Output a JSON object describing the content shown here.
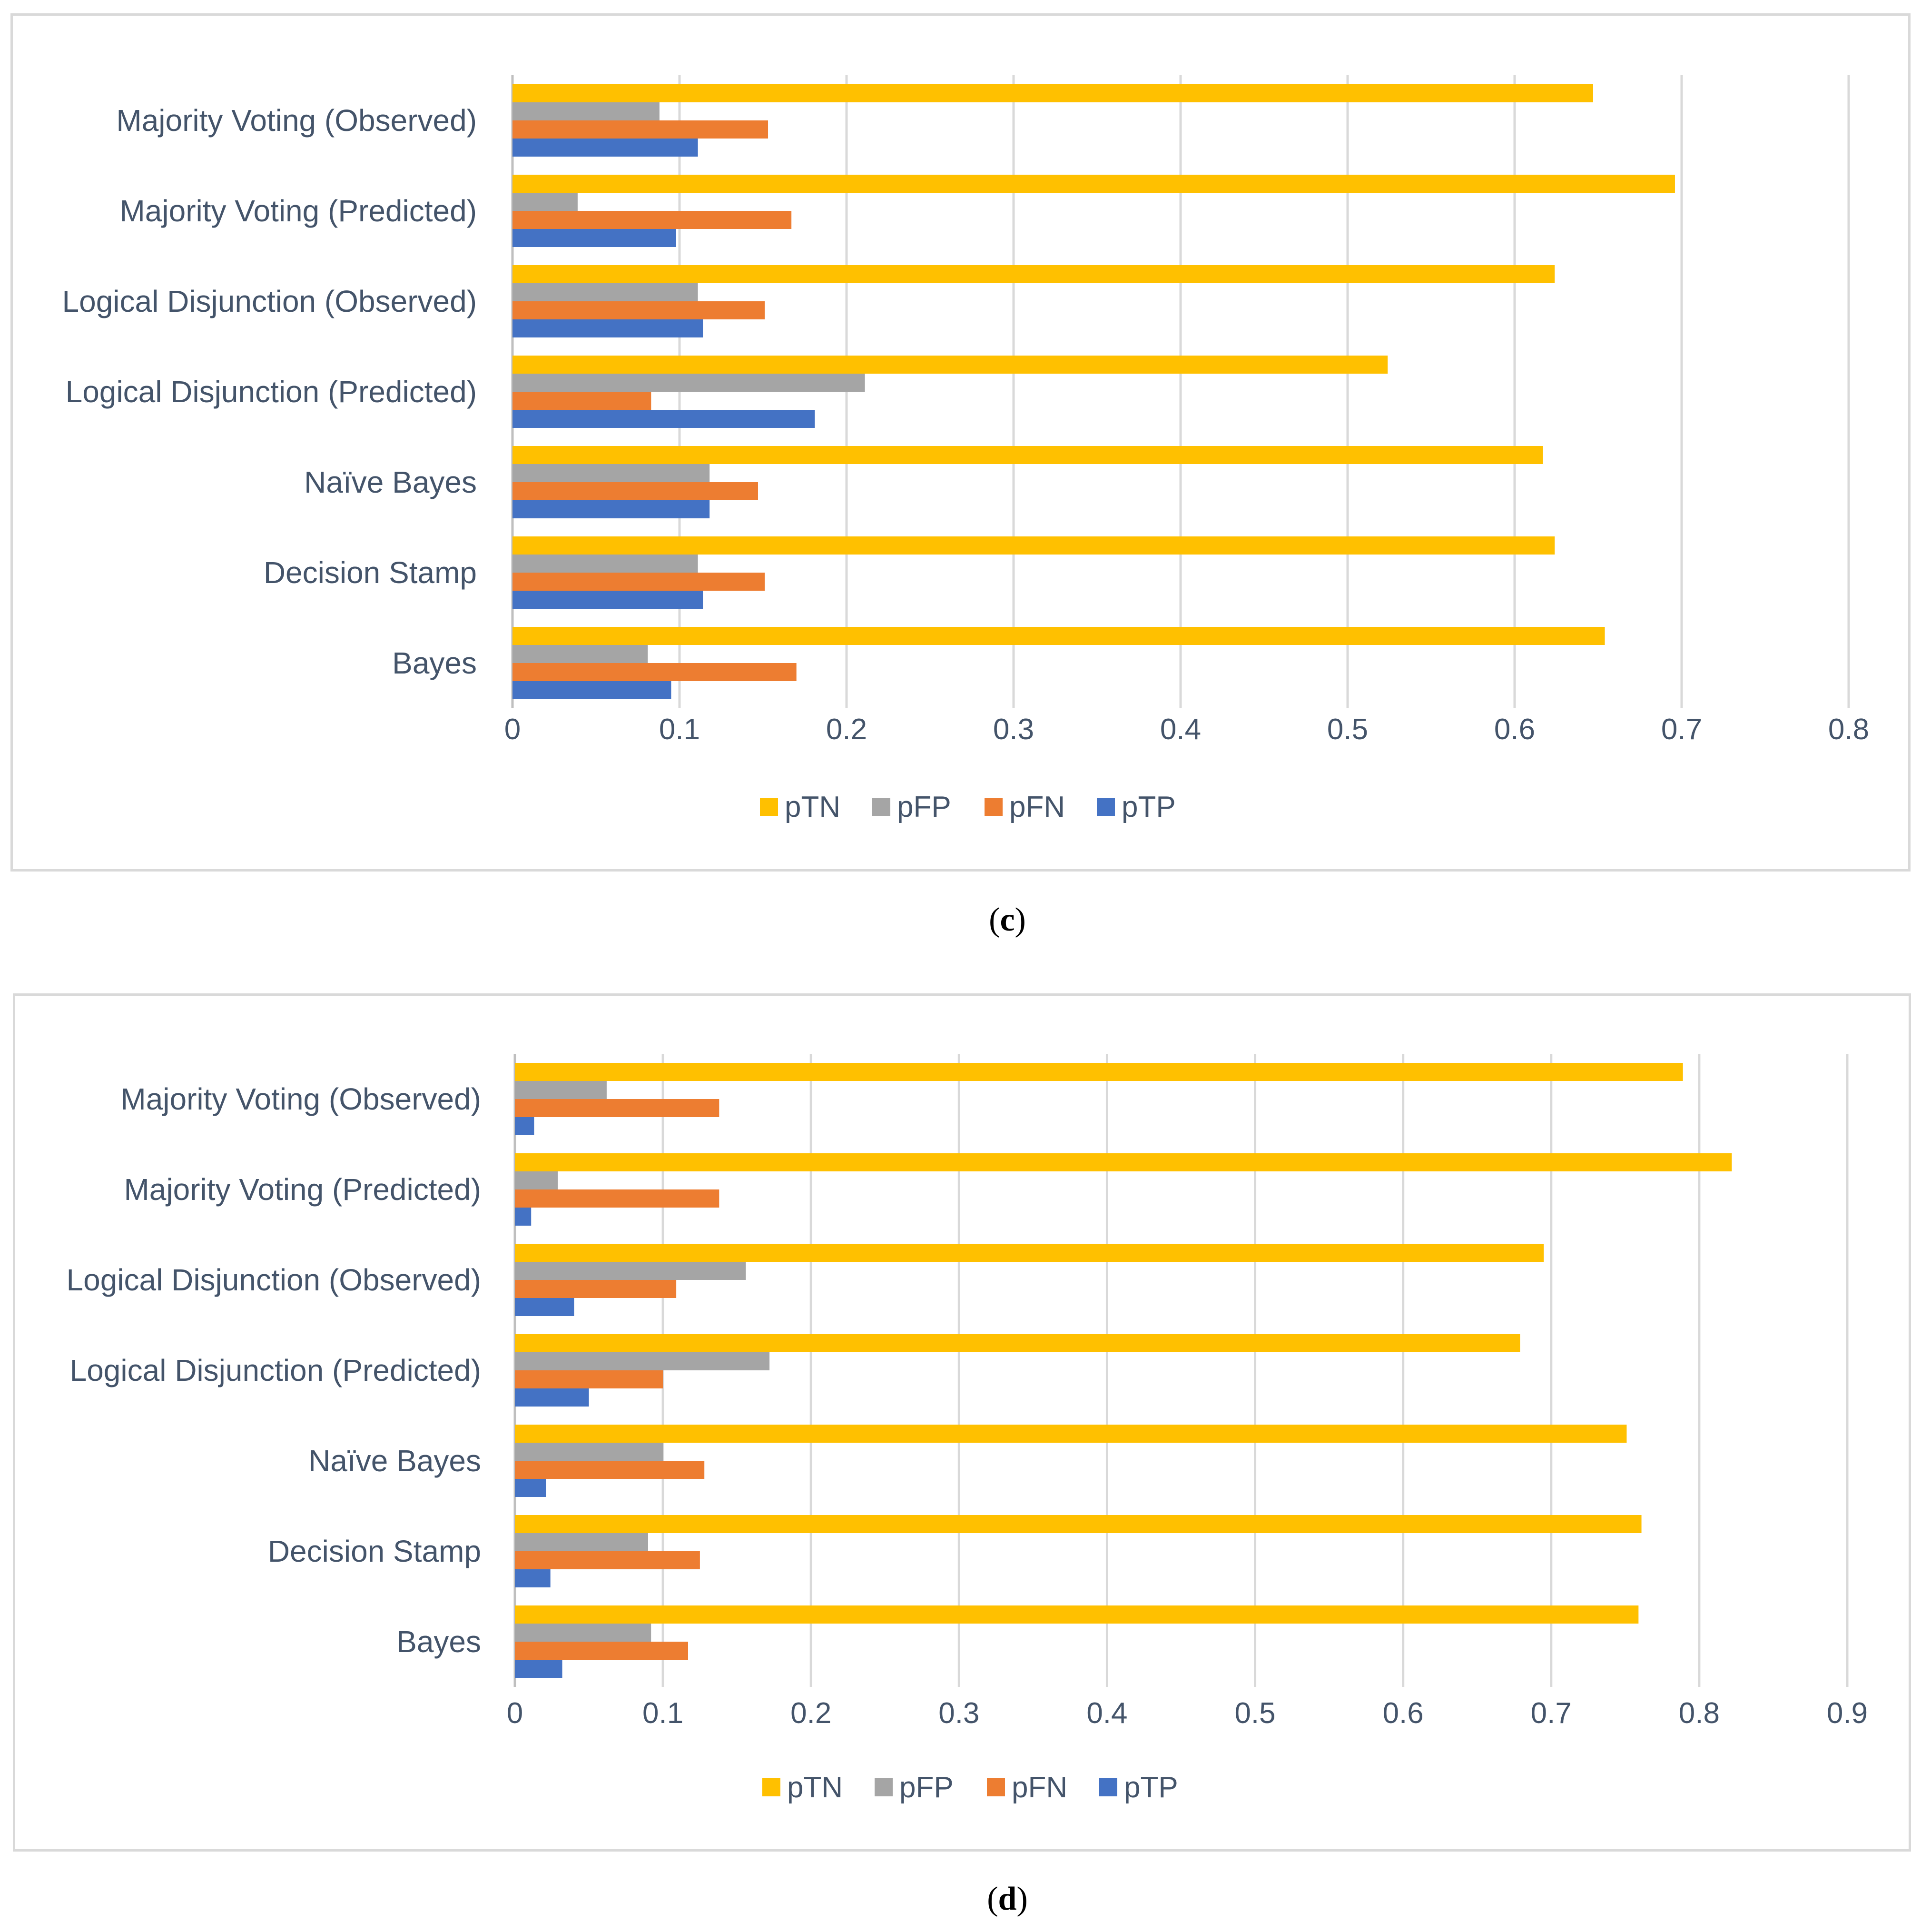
{
  "figure": {
    "panels": [
      {
        "caption": "c"
      },
      {
        "caption": "d"
      }
    ]
  },
  "chart_data": [
    {
      "type": "bar",
      "orientation": "horizontal",
      "panel": "c",
      "categories": [
        "Majority Voting (Observed)",
        "Majority Voting (Predicted)",
        "Logical Disjunction (Observed)",
        "Logical Disjunction (Predicted)",
        "Naïve Bayes",
        "Decision Stamp",
        "Bayes"
      ],
      "series": [
        {
          "name": "pTN",
          "color": "#ffc000",
          "values": [
            0.647,
            0.696,
            0.624,
            0.524,
            0.617,
            0.624,
            0.654
          ]
        },
        {
          "name": "pFP",
          "color": "#a5a5a5",
          "values": [
            0.088,
            0.039,
            0.111,
            0.211,
            0.118,
            0.111,
            0.081
          ]
        },
        {
          "name": "pFN",
          "color": "#ed7d31",
          "values": [
            0.153,
            0.167,
            0.151,
            0.083,
            0.147,
            0.151,
            0.17
          ]
        },
        {
          "name": "pTP",
          "color": "#4472c4",
          "values": [
            0.111,
            0.098,
            0.114,
            0.181,
            0.118,
            0.114,
            0.095
          ]
        }
      ],
      "xlim": [
        0,
        0.8
      ],
      "xticks": [
        "0",
        "0.1",
        "0.2",
        "0.3",
        "0.4",
        "0.5",
        "0.6",
        "0.7",
        "0.8"
      ],
      "legend": [
        "pTN",
        "pFP",
        "pFN",
        "pTP"
      ],
      "legend_position": "bottom",
      "grid": true,
      "title": "",
      "xlabel": "",
      "ylabel": ""
    },
    {
      "type": "bar",
      "orientation": "horizontal",
      "panel": "d",
      "categories": [
        "Majority Voting (Observed)",
        "Majority Voting (Predicted)",
        "Logical Disjunction (Observed)",
        "Logical Disjunction (Predicted)",
        "Naïve Bayes",
        "Decision Stamp",
        "Bayes"
      ],
      "series": [
        {
          "name": "pTN",
          "color": "#ffc000",
          "values": [
            0.789,
            0.822,
            0.695,
            0.679,
            0.751,
            0.761,
            0.759
          ]
        },
        {
          "name": "pFP",
          "color": "#a5a5a5",
          "values": [
            0.062,
            0.029,
            0.156,
            0.172,
            0.1,
            0.09,
            0.092
          ]
        },
        {
          "name": "pFN",
          "color": "#ed7d31",
          "values": [
            0.138,
            0.138,
            0.109,
            0.1,
            0.128,
            0.125,
            0.117
          ]
        },
        {
          "name": "pTP",
          "color": "#4472c4",
          "values": [
            0.013,
            0.011,
            0.04,
            0.05,
            0.021,
            0.024,
            0.032
          ]
        }
      ],
      "xlim": [
        0,
        0.9
      ],
      "xticks": [
        "0",
        "0.1",
        "0.2",
        "0.3",
        "0.4",
        "0.5",
        "0.6",
        "0.7",
        "0.8",
        "0.9"
      ],
      "legend": [
        "pTN",
        "pFP",
        "pFN",
        "pTP"
      ],
      "legend_position": "bottom",
      "grid": true,
      "title": "",
      "xlabel": "",
      "ylabel": ""
    }
  ]
}
